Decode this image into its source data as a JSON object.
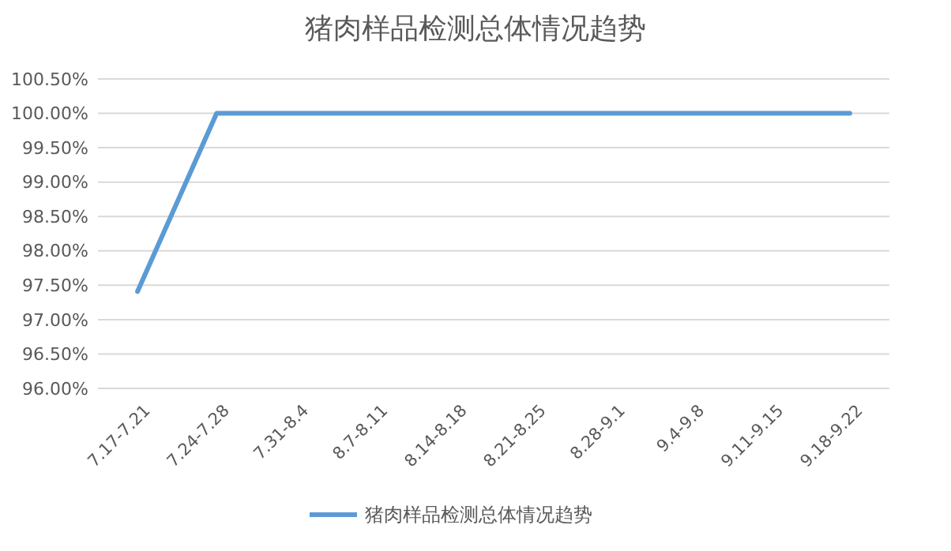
{
  "chart_data": {
    "type": "line",
    "title": "猪肉样品检测总体情况趋势",
    "categories": [
      "7.17-7.21",
      "7.24-7.28",
      "7.31-8.4",
      "8.7-8.11",
      "8.14-8.18",
      "8.21-8.25",
      "8.28-9.1",
      "9.4-9.8",
      "9.11-9.15",
      "9.18-9.22"
    ],
    "series": [
      {
        "name": "猪肉样品检测总体情况趋势",
        "color": "#5b9bd5",
        "values": [
          97.41,
          100,
          100,
          100,
          100,
          100,
          100,
          100,
          100,
          100
        ]
      }
    ],
    "ylim": [
      96,
      100.5
    ],
    "yticks": [
      {
        "value": 96,
        "label": "96.00%"
      },
      {
        "value": 96.5,
        "label": "96.50%"
      },
      {
        "value": 97,
        "label": "97.00%"
      },
      {
        "value": 97.5,
        "label": "97.50%"
      },
      {
        "value": 98,
        "label": "98.00%"
      },
      {
        "value": 98.5,
        "label": "98.50%"
      },
      {
        "value": 99,
        "label": "99.00%"
      },
      {
        "value": 99.5,
        "label": "99.50%"
      },
      {
        "value": 100,
        "label": "100.00%"
      },
      {
        "value": 100.5,
        "label": "100.50%"
      }
    ],
    "grid": "y",
    "legend": "bottom",
    "marker": "none",
    "line_style": "solid"
  }
}
